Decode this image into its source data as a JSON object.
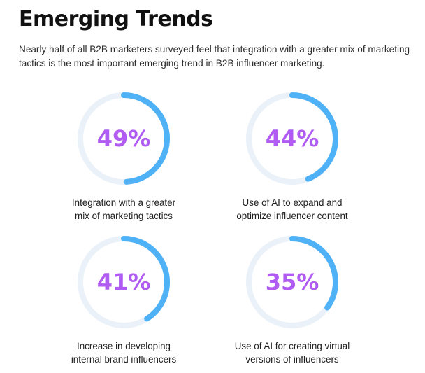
{
  "title": "Emerging Trends",
  "subtitle": "Nearly half of all B2B marketers surveyed feel that integration with a greater mix of marketing tactics is the most important emerging trend in B2B influencer marketing.",
  "colors": {
    "ring_fill": "#4fb1f6",
    "ring_track": "#eaf1f8",
    "percent_text": "#b05cf2"
  },
  "stats": [
    {
      "percent_text": "49%",
      "value": 49,
      "label_line1": "Integration with a greater",
      "label_line2": "mix of marketing tactics"
    },
    {
      "percent_text": "44%",
      "value": 44,
      "label_line1": "Use of AI to expand and",
      "label_line2": "optimize influencer content"
    },
    {
      "percent_text": "41%",
      "value": 41,
      "label_line1": "Increase in developing",
      "label_line2": "internal brand influencers"
    },
    {
      "percent_text": "35%",
      "value": 35,
      "label_line1": "Use of AI for creating virtual",
      "label_line2": "versions of influencers"
    }
  ]
}
